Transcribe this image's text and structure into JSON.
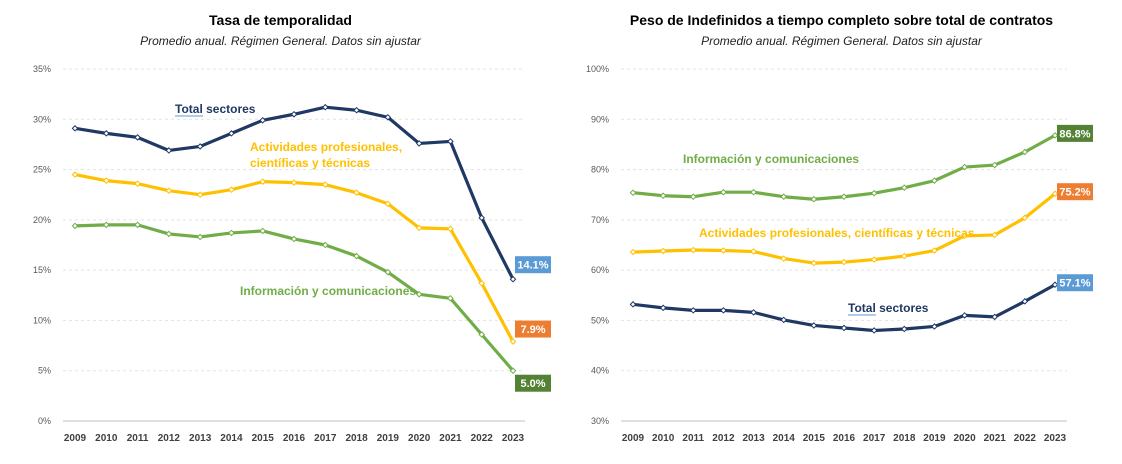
{
  "chart_data": [
    {
      "type": "line",
      "title": "Tasa de temporalidad",
      "subtitle": "Promedio anual. Régimen General. Datos sin ajustar",
      "x": [
        "2009",
        "2010",
        "2011",
        "2012",
        "2013",
        "2014",
        "2015",
        "2016",
        "2017",
        "2018",
        "2019",
        "2020",
        "2021",
        "2022",
        "2023"
      ],
      "yticks": [
        "0%",
        "5%",
        "10%",
        "15%",
        "20%",
        "25%",
        "30%",
        "35%"
      ],
      "ylim": [
        0,
        35
      ],
      "grid": true,
      "series": [
        {
          "name": "Total sectores",
          "color": "#1f3864",
          "values": [
            29.1,
            28.6,
            28.2,
            26.9,
            27.3,
            28.6,
            29.9,
            30.5,
            31.2,
            30.9,
            30.2,
            27.6,
            27.8,
            20.2,
            14.1
          ],
          "end_label": "14.1%",
          "end_color": "#5b9bd5"
        },
        {
          "name": "Actividades profesionales, científicas y técnicas",
          "color": "#ffc000",
          "values": [
            24.5,
            23.9,
            23.6,
            22.9,
            22.5,
            23.0,
            23.8,
            23.7,
            23.5,
            22.7,
            21.6,
            19.2,
            19.1,
            13.7,
            7.9
          ],
          "end_label": "7.9%",
          "end_color": "#ed7d31"
        },
        {
          "name": "Información y comunicaciones",
          "color": "#70ad47",
          "values": [
            19.4,
            19.5,
            19.5,
            18.6,
            18.3,
            18.7,
            18.9,
            18.1,
            17.5,
            16.4,
            14.8,
            12.6,
            12.2,
            8.6,
            5.0
          ],
          "end_label": "5.0%",
          "end_color": "#548235"
        }
      ]
    },
    {
      "type": "line",
      "title": "Peso de Indefinidos a tiempo completo sobre total de contratos",
      "subtitle": "Promedio anual. Régimen General. Datos sin ajustar",
      "x": [
        "2009",
        "2010",
        "2011",
        "2012",
        "2013",
        "2014",
        "2015",
        "2016",
        "2017",
        "2018",
        "2019",
        "2020",
        "2021",
        "2022",
        "2023"
      ],
      "yticks": [
        "30%",
        "40%",
        "50%",
        "60%",
        "70%",
        "80%",
        "90%",
        "100%"
      ],
      "ylim": [
        30,
        100
      ],
      "grid": true,
      "series": [
        {
          "name": "Información y comunicaciones",
          "color": "#70ad47",
          "values": [
            75.4,
            74.8,
            74.6,
            75.5,
            75.5,
            74.6,
            74.1,
            74.6,
            75.3,
            76.4,
            77.8,
            80.5,
            80.9,
            83.5,
            86.8
          ],
          "end_label": "86.8%",
          "end_color": "#548235"
        },
        {
          "name": "Actividades profesionales, científicas y técnicas",
          "color": "#ffc000",
          "values": [
            63.6,
            63.8,
            64.0,
            63.9,
            63.7,
            62.3,
            61.4,
            61.6,
            62.1,
            62.8,
            63.9,
            66.8,
            67.0,
            70.4,
            75.2
          ],
          "end_label": "75.2%",
          "end_color": "#ed7d31"
        },
        {
          "name": "Total sectores",
          "color": "#1f3864",
          "values": [
            53.2,
            52.5,
            52.0,
            52.0,
            51.6,
            50.1,
            49.0,
            48.5,
            48.0,
            48.3,
            48.8,
            51.0,
            50.7,
            53.8,
            57.1
          ],
          "end_label": "57.1%",
          "end_color": "#5b9bd5"
        }
      ]
    }
  ]
}
